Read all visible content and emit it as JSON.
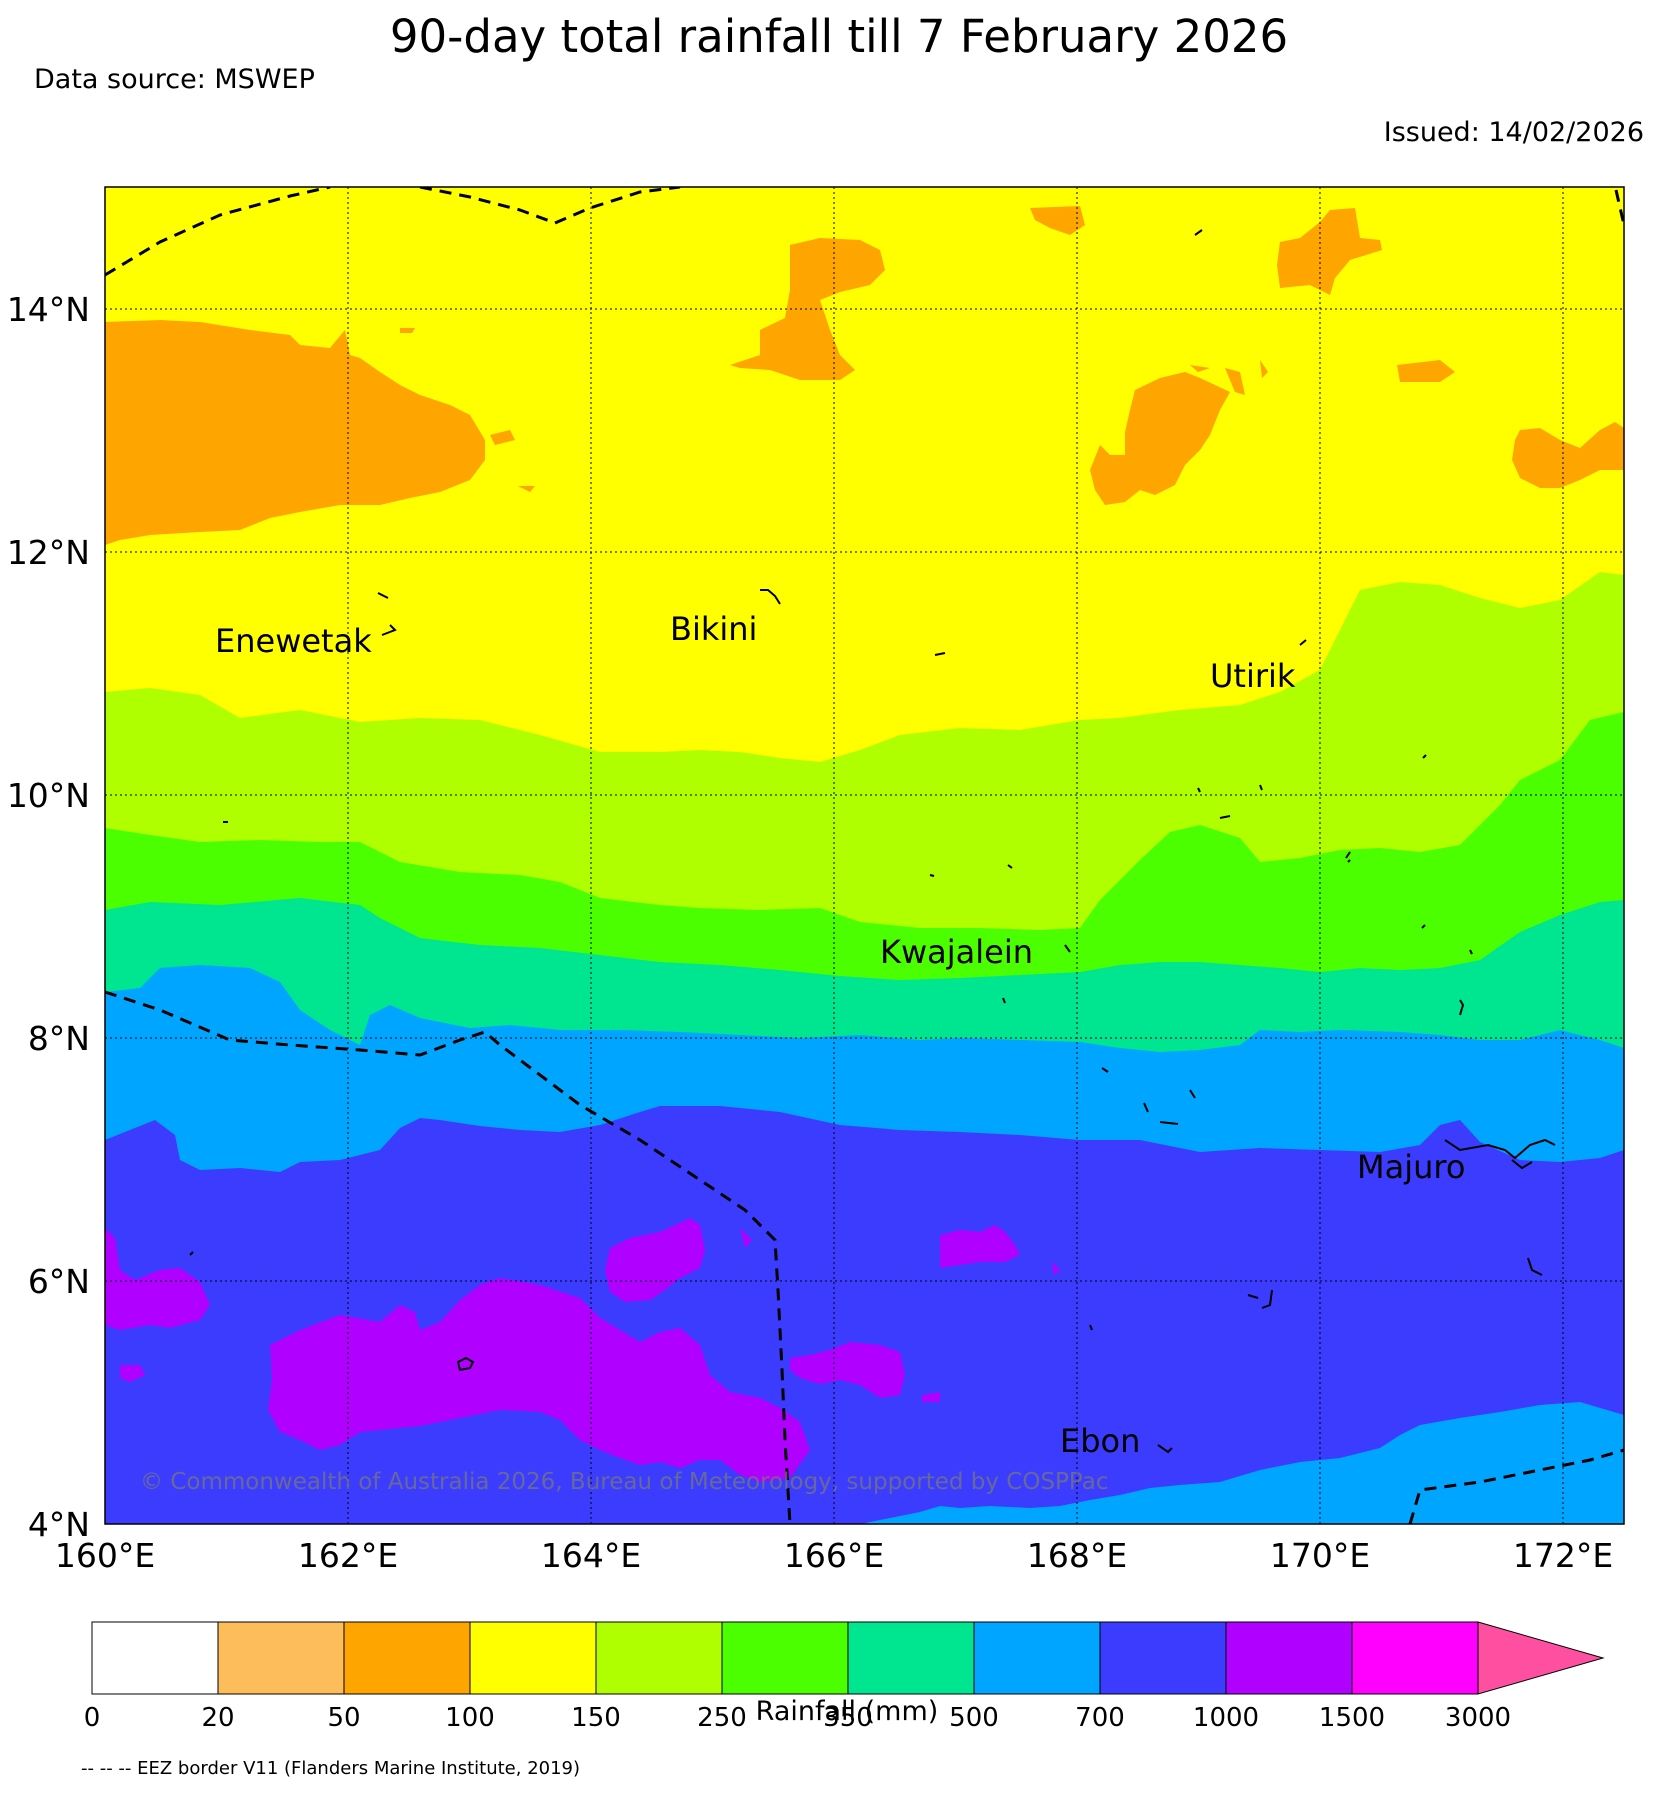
{
  "title": "90-day total rainfall till 7 February 2026",
  "data_source": "Data source: MSWEP",
  "issued": "Issued: 14/02/2026",
  "copyright": "© Commonwealth of Australia 2026, Bureau of Meteorology, supported by COSPPac",
  "map": {
    "lon_range": [
      160,
      172.5
    ],
    "lat_range": [
      4,
      15
    ],
    "x_ticks": [
      "160°E",
      "162°E",
      "164°E",
      "166°E",
      "168°E",
      "170°E",
      "172°E"
    ],
    "y_ticks": [
      "4°N",
      "6°N",
      "8°N",
      "10°N",
      "12°N",
      "14°N"
    ],
    "grid": true,
    "places": [
      {
        "name": "Enewetak",
        "lon": 161.2,
        "lat": 11.2
      },
      {
        "name": "Bikini",
        "lon": 165.2,
        "lat": 11.3
      },
      {
        "name": "Utirik",
        "lon": 169.6,
        "lat": 10.9
      },
      {
        "name": "Kwajalein",
        "lon": 167.4,
        "lat": 8.7
      },
      {
        "name": "Majuro",
        "lon": 170.8,
        "lat": 6.95
      },
      {
        "name": "Ebon",
        "lon": 168.2,
        "lat": 4.65
      }
    ]
  },
  "legend": {
    "label": "Rainfall (mm)",
    "bins": [
      "0",
      "20",
      "50",
      "100",
      "150",
      "250",
      "350",
      "500",
      "700",
      "1000",
      "1500",
      "3000"
    ],
    "colors": [
      "#ffffff",
      "#fdbd5a",
      "#ffa500",
      "#ffff00",
      "#b0ff00",
      "#4cff00",
      "#00e58f",
      "#00a5ff",
      "#3c3cff",
      "#b000ff",
      "#ff00ff",
      "#ff4fa0"
    ]
  },
  "footnote": "-- -- -- EEZ border V11 (Flanders Marine Institute, 2019)"
}
